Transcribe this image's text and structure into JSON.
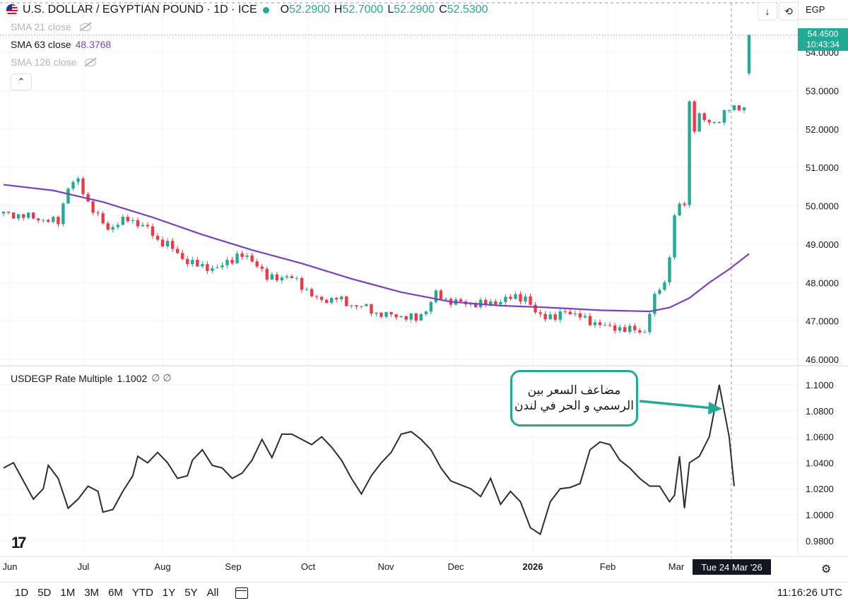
{
  "header": {
    "title": "U.S. DOLLAR / EGYPTIAN POUND · 1D · ICE",
    "ohlc": [
      {
        "k": "O",
        "v": "52.2900"
      },
      {
        "k": "H",
        "v": "52.7000"
      },
      {
        "k": "L",
        "v": "52.2900"
      },
      {
        "k": "C",
        "v": "52.5300"
      }
    ],
    "currency": "EGP"
  },
  "indicators": [
    {
      "label": "SMA 21 close",
      "value": "",
      "hidden": true
    },
    {
      "label": "SMA 63 close",
      "value": "48.3768",
      "hidden": false,
      "color": "#7e3fbf"
    },
    {
      "label": "SMA 126 close",
      "value": "",
      "hidden": true
    }
  ],
  "price_tag": {
    "price": "54.4500",
    "countdown": "10:43:34"
  },
  "lower_pane": {
    "label": "USDEGP Rate Multiple",
    "value": "1.1002",
    "extra": "∅ ∅"
  },
  "callout": {
    "line1": "مضاعف السعر بين",
    "line2": "الرسمي و الحر في لندن"
  },
  "crosshair_date": "Tue 24 Mar '26",
  "toolbar": {
    "ranges": [
      "1D",
      "5D",
      "1M",
      "3M",
      "6M",
      "YTD",
      "1Y",
      "5Y",
      "All"
    ],
    "clock": "11:16:26 UTC"
  },
  "colors": {
    "up": "#22ab94",
    "down": "#f23645",
    "sma": "#7e3fbf",
    "multiple": "#2a2e39",
    "accent": "#22ab94"
  },
  "chart_data": [
    {
      "type": "candlestick",
      "title": "U.S. DOLLAR / EGYPTIAN POUND · 1D · ICE",
      "x_ticks": [
        "Jun",
        "Jul",
        "Aug",
        "Sep",
        "Oct",
        "Nov",
        "Dec",
        "2026",
        "Feb",
        "Mar"
      ],
      "y_ticks": [
        "46.0000",
        "47.0000",
        "48.0000",
        "49.0000",
        "50.0000",
        "51.0000",
        "52.0000",
        "53.0000",
        "54.0000"
      ],
      "ylim": [
        46.0,
        54.0
      ],
      "close_points": [
        [
          0,
          49.8
        ],
        [
          3,
          49.75
        ],
        [
          6,
          49.7
        ],
        [
          9,
          49.6
        ],
        [
          11,
          49.6
        ],
        [
          13,
          50.5
        ],
        [
          15,
          50.65
        ],
        [
          17,
          50.1
        ],
        [
          19,
          49.7
        ],
        [
          21,
          49.4
        ],
        [
          23,
          49.55
        ],
        [
          25,
          49.65
        ],
        [
          27,
          49.55
        ],
        [
          29,
          49.4
        ],
        [
          31,
          49.1
        ],
        [
          33,
          49.0
        ],
        [
          35,
          48.75
        ],
        [
          37,
          48.55
        ],
        [
          39,
          48.45
        ],
        [
          41,
          48.4
        ],
        [
          43,
          48.35
        ],
        [
          45,
          48.55
        ],
        [
          47,
          48.7
        ],
        [
          49,
          48.65
        ],
        [
          51,
          48.5
        ],
        [
          53,
          48.1
        ],
        [
          55,
          48.15
        ],
        [
          57,
          48.15
        ],
        [
          59,
          48.05
        ],
        [
          61,
          47.8
        ],
        [
          63,
          47.55
        ],
        [
          65,
          47.55
        ],
        [
          67,
          47.6
        ],
        [
          69,
          47.45
        ],
        [
          71,
          47.4
        ],
        [
          73,
          47.35
        ],
        [
          75,
          47.2
        ],
        [
          77,
          47.15
        ],
        [
          79,
          47.15
        ],
        [
          81,
          47.1
        ],
        [
          83,
          47.05
        ],
        [
          85,
          47.3
        ],
        [
          87,
          47.7
        ],
        [
          89,
          47.55
        ],
        [
          91,
          47.5
        ],
        [
          93,
          47.45
        ],
        [
          95,
          47.45
        ],
        [
          97,
          47.45
        ],
        [
          99,
          47.5
        ],
        [
          101,
          47.55
        ],
        [
          103,
          47.65
        ],
        [
          105,
          47.6
        ],
        [
          107,
          47.2
        ],
        [
          109,
          47.15
        ],
        [
          111,
          47.05
        ],
        [
          113,
          47.3
        ],
        [
          115,
          47.15
        ],
        [
          117,
          47.05
        ],
        [
          119,
          46.95
        ],
        [
          121,
          46.85
        ],
        [
          123,
          46.85
        ],
        [
          125,
          46.75
        ],
        [
          127,
          46.8
        ],
        [
          129,
          46.7
        ],
        [
          130,
          47.2
        ],
        [
          131,
          47.6
        ],
        [
          132,
          47.9
        ],
        [
          133,
          48.0
        ],
        [
          134,
          48.7
        ],
        [
          135,
          49.7
        ],
        [
          136,
          50.0
        ],
        [
          137,
          50.1
        ],
        [
          138,
          52.7
        ],
        [
          139,
          52.0
        ],
        [
          140,
          52.3
        ],
        [
          142,
          52.2
        ],
        [
          144,
          52.2
        ],
        [
          146,
          52.55
        ],
        [
          147,
          52.6
        ],
        [
          149,
          52.53
        ],
        [
          150,
          54.45
        ]
      ],
      "sma63": [
        [
          0,
          50.55
        ],
        [
          10,
          50.4
        ],
        [
          20,
          50.1
        ],
        [
          30,
          49.7
        ],
        [
          40,
          49.25
        ],
        [
          50,
          48.85
        ],
        [
          60,
          48.5
        ],
        [
          70,
          48.1
        ],
        [
          80,
          47.75
        ],
        [
          90,
          47.5
        ],
        [
          100,
          47.4
        ],
        [
          110,
          47.35
        ],
        [
          120,
          47.28
        ],
        [
          130,
          47.25
        ],
        [
          134,
          47.35
        ],
        [
          138,
          47.6
        ],
        [
          142,
          48.0
        ],
        [
          146,
          48.35
        ],
        [
          150,
          48.75
        ]
      ]
    },
    {
      "type": "line",
      "title": "USDEGP Rate Multiple",
      "series": [
        {
          "name": "USDEGP Rate Multiple",
          "color": "#2a2e39"
        }
      ],
      "y_ticks": [
        "0.9800",
        "1.0000",
        "1.0200",
        "1.0400",
        "1.0600",
        "1.0800",
        "1.1000"
      ],
      "ylim": [
        0.975,
        1.105
      ],
      "points": [
        [
          0,
          1.036
        ],
        [
          2,
          1.04
        ],
        [
          4,
          1.026
        ],
        [
          6,
          1.012
        ],
        [
          8,
          1.02
        ],
        [
          9,
          1.038
        ],
        [
          11,
          1.028
        ],
        [
          13,
          1.005
        ],
        [
          15,
          1.012
        ],
        [
          17,
          1.022
        ],
        [
          19,
          1.018
        ],
        [
          20,
          1.002
        ],
        [
          22,
          1.004
        ],
        [
          24,
          1.018
        ],
        [
          26,
          1.03
        ],
        [
          27,
          1.045
        ],
        [
          29,
          1.04
        ],
        [
          31,
          1.048
        ],
        [
          33,
          1.04
        ],
        [
          35,
          1.028
        ],
        [
          37,
          1.03
        ],
        [
          38,
          1.042
        ],
        [
          40,
          1.05
        ],
        [
          42,
          1.038
        ],
        [
          44,
          1.036
        ],
        [
          46,
          1.028
        ],
        [
          48,
          1.032
        ],
        [
          50,
          1.042
        ],
        [
          52,
          1.058
        ],
        [
          54,
          1.044
        ],
        [
          56,
          1.062
        ],
        [
          58,
          1.062
        ],
        [
          60,
          1.058
        ],
        [
          62,
          1.054
        ],
        [
          64,
          1.06
        ],
        [
          66,
          1.052
        ],
        [
          68,
          1.042
        ],
        [
          70,
          1.028
        ],
        [
          72,
          1.016
        ],
        [
          74,
          1.03
        ],
        [
          76,
          1.04
        ],
        [
          78,
          1.048
        ],
        [
          80,
          1.062
        ],
        [
          82,
          1.064
        ],
        [
          84,
          1.058
        ],
        [
          86,
          1.05
        ],
        [
          88,
          1.036
        ],
        [
          90,
          1.026
        ],
        [
          92,
          1.023
        ],
        [
          94,
          1.02
        ],
        [
          96,
          1.014
        ],
        [
          98,
          1.028
        ],
        [
          100,
          1.008
        ],
        [
          102,
          1.018
        ],
        [
          104,
          1.01
        ],
        [
          106,
          0.99
        ],
        [
          108,
          0.985
        ],
        [
          110,
          1.01
        ],
        [
          112,
          1.02
        ],
        [
          114,
          1.021
        ],
        [
          116,
          1.024
        ],
        [
          118,
          1.05
        ],
        [
          120,
          1.056
        ],
        [
          122,
          1.054
        ],
        [
          124,
          1.042
        ],
        [
          126,
          1.036
        ],
        [
          128,
          1.028
        ],
        [
          130,
          1.022
        ],
        [
          132,
          1.022
        ],
        [
          134,
          1.01
        ],
        [
          135,
          1.015
        ],
        [
          136,
          1.045
        ],
        [
          137,
          1.005
        ],
        [
          138,
          1.04
        ],
        [
          140,
          1.045
        ],
        [
          142,
          1.06
        ],
        [
          144,
          1.1
        ],
        [
          146,
          1.06
        ],
        [
          147,
          1.022
        ]
      ]
    }
  ]
}
